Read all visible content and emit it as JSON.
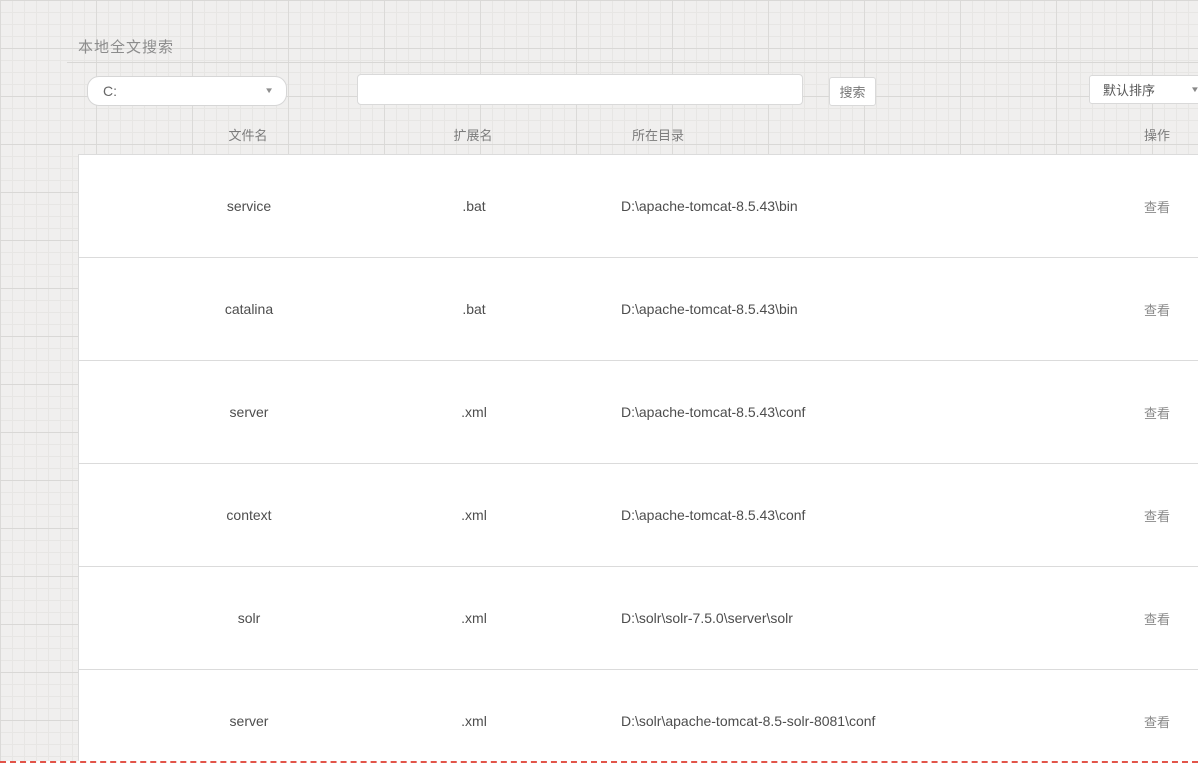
{
  "page": {
    "title": "本地全文搜索"
  },
  "controls": {
    "drive_select": {
      "value": "C:",
      "arrow": "▼"
    },
    "search_input": {
      "value": "",
      "placeholder": ""
    },
    "search_button": "搜索",
    "sort_select": {
      "value": "默认排序",
      "arrow": "▼"
    }
  },
  "table": {
    "headers": [
      "文件名",
      "扩展名",
      "所在目录",
      "操作"
    ],
    "action_label": "查看",
    "rows": [
      {
        "name": "service",
        "ext": ".bat",
        "dir": "D:\\apache-tomcat-8.5.43\\bin"
      },
      {
        "name": "catalina",
        "ext": ".bat",
        "dir": "D:\\apache-tomcat-8.5.43\\bin"
      },
      {
        "name": "server",
        "ext": ".xml",
        "dir": "D:\\apache-tomcat-8.5.43\\conf"
      },
      {
        "name": "context",
        "ext": ".xml",
        "dir": "D:\\apache-tomcat-8.5.43\\conf"
      },
      {
        "name": "solr",
        "ext": ".xml",
        "dir": "D:\\solr\\solr-7.5.0\\server\\solr"
      },
      {
        "name": "server",
        "ext": ".xml",
        "dir": "D:\\solr\\apache-tomcat-8.5-solr-8081\\conf"
      }
    ]
  },
  "colors": {
    "grid_background": "#f0efee",
    "grid_line_minor": "#e7e6e4",
    "grid_line_major": "#d9d8d6",
    "card_border": "#dbdbdb",
    "text_primary": "#4d4d4d",
    "text_muted": "#8c8c8c",
    "boundary_dashed": "#e25449"
  }
}
